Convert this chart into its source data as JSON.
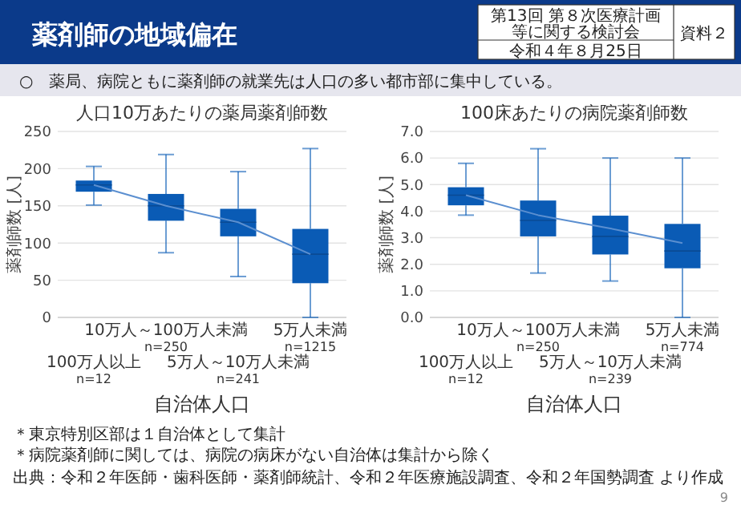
{
  "chart_data": [
    {
      "type": "other",
      "title": "薬剤師の地域偏在",
      "subtitle": "○　薬局、病院ともに薬剤師の就業先は人口の多い都市部に集中している。",
      "annotations": [
        "第13回 第８次医療計画等に関する検討会",
        "令和４年８月25日",
        "資料２",
        "＊東京特別区部は１自治体として集計",
        "＊病院薬剤師に関しては、病院の病床がない自治体は集計から除く",
        "出典：令和２年医師・歯科医師・薬剤師統計、令和２年医療施設調査、令和２年国勢調査 より作成",
        "9"
      ]
    },
    {
      "type": "box",
      "title": "人口10万あたりの薬局薬剤師数",
      "xlabel": "自治体人口",
      "ylabel": "薬剤師数 [人]",
      "color": "#0a5bb5",
      "grid": "y",
      "categories": [
        "100万人以上\nn=12",
        "10万人～100万人未満\nn=250",
        "5万人～10万人未満\nn=241",
        "5万人未満\nn=1215"
      ],
      "boxes": [
        {
          "low": 151,
          "q1": 169,
          "median": 178,
          "q3": 184,
          "high": 203
        },
        {
          "low": 87,
          "q1": 130,
          "median": 150,
          "q3": 166,
          "high": 219
        },
        {
          "low": 55,
          "q1": 109,
          "median": 128,
          "q3": 146,
          "high": 196
        },
        {
          "low": 0,
          "q1": 46,
          "median": 85,
          "q3": 119,
          "high": 227
        }
      ],
      "series": [
        {
          "type": "line",
          "color": "#5b8fd0",
          "values": [
            178,
            150,
            128,
            85
          ]
        }
      ],
      "ylim": [
        0,
        250
      ],
      "yticks": [
        0,
        50,
        100,
        150,
        200,
        250
      ]
    },
    {
      "type": "box",
      "title": "100床あたりの病院薬剤師数",
      "xlabel": "自治体人口",
      "ylabel": "薬剤師数 [人]",
      "color": "#0a5bb5",
      "grid": "y",
      "categories": [
        "100万人以上\nn=12",
        "10万人～100万人未満\nn=250",
        "5万人～10万人未満\nn=239",
        "5万人未満\nn=774"
      ],
      "boxes": [
        {
          "low": 3.85,
          "q1": 4.22,
          "median": 4.6,
          "q3": 4.9,
          "high": 5.8
        },
        {
          "low": 1.67,
          "q1": 3.05,
          "median": 3.65,
          "q3": 4.4,
          "high": 6.35
        },
        {
          "low": 1.37,
          "q1": 2.37,
          "median": 3.05,
          "q3": 3.83,
          "high": 6.0
        },
        {
          "low": 0,
          "q1": 1.85,
          "median": 2.5,
          "q3": 3.52,
          "high": 6.0
        }
      ],
      "series": [
        {
          "type": "line",
          "color": "#5b8fd0",
          "values": [
            4.6,
            3.85,
            3.35,
            2.8
          ]
        }
      ],
      "ylim": [
        0,
        7
      ],
      "yticks": [
        {
          "value": 0,
          "label": "0.0"
        },
        {
          "value": 1,
          "label": "1.0"
        },
        {
          "value": 2,
          "label": "2.0"
        },
        {
          "value": 3,
          "label": "3.0"
        },
        {
          "value": 4,
          "label": "4.0"
        },
        {
          "value": 5,
          "label": "5.0"
        },
        {
          "value": 6,
          "label": "6.0"
        },
        {
          "value": 7,
          "label": "7.0"
        }
      ]
    }
  ]
}
